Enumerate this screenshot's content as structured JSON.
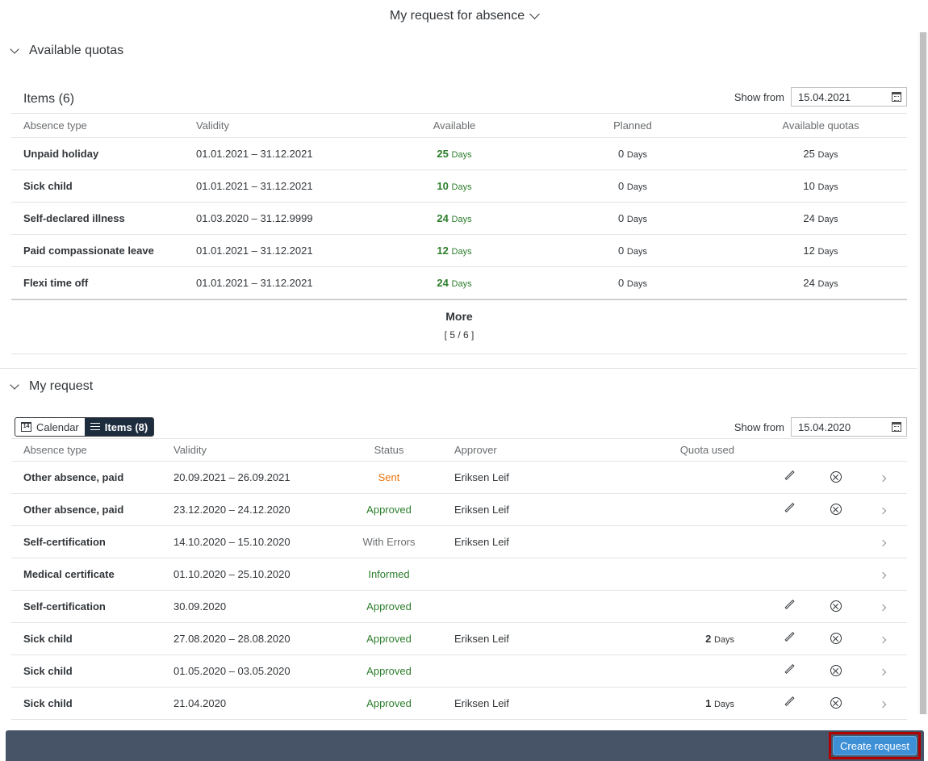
{
  "header": {
    "title": "My request for absence"
  },
  "quotas": {
    "section_title": "Available quotas",
    "items_title": "Items (6)",
    "show_from_label": "Show from",
    "show_from_value": "15.04.2021",
    "columns": [
      "Absence type",
      "Validity",
      "Available",
      "Planned",
      "Available quotas"
    ],
    "rows": [
      {
        "type": "Unpaid holiday",
        "validity": "01.01.2021 – 31.12.2021",
        "available": "25",
        "planned": "0",
        "quotas": "25",
        "unit": "Days"
      },
      {
        "type": "Sick child",
        "validity": "01.01.2021 – 31.12.2021",
        "available": "10",
        "planned": "0",
        "quotas": "10",
        "unit": "Days"
      },
      {
        "type": "Self-declared illness",
        "validity": "01.03.2020 – 31.12.9999",
        "available": "24",
        "planned": "0",
        "quotas": "24",
        "unit": "Days"
      },
      {
        "type": "Paid compassionate leave",
        "validity": "01.01.2021 – 31.12.2021",
        "available": "12",
        "planned": "0",
        "quotas": "12",
        "unit": "Days"
      },
      {
        "type": "Flexi time off",
        "validity": "01.01.2021 – 31.12.2021",
        "available": "24",
        "planned": "0",
        "quotas": "24",
        "unit": "Days"
      }
    ],
    "more_label": "More",
    "more_count": "[ 5 / 6 ]"
  },
  "requests": {
    "section_title": "My request",
    "calendar_label": "Calendar",
    "calendar_icon_text": "14",
    "items_label": "Items (8)",
    "show_from_label": "Show from",
    "show_from_value": "15.04.2020",
    "columns": [
      "Absence type",
      "Validity",
      "Status",
      "Approver",
      "Quota used"
    ],
    "rows": [
      {
        "type": "Other absence, paid",
        "validity": "20.09.2021 – 26.09.2021",
        "status": "Sent",
        "status_color": "#e9730c",
        "approver": "Eriksen Leif",
        "quota": "",
        "unit": "",
        "edit": true,
        "cancel": true
      },
      {
        "type": "Other absence, paid",
        "validity": "23.12.2020 – 24.12.2020",
        "status": "Approved",
        "status_color": "#2b7d2b",
        "approver": "Eriksen Leif",
        "quota": "",
        "unit": "",
        "edit": true,
        "cancel": true
      },
      {
        "type": "Self-certification",
        "validity": "14.10.2020 – 15.10.2020",
        "status": "With Errors",
        "status_color": "#6a6d70",
        "approver": "Eriksen Leif",
        "quota": "",
        "unit": "",
        "edit": false,
        "cancel": false
      },
      {
        "type": "Medical certificate",
        "validity": "01.10.2020 – 25.10.2020",
        "status": "Informed",
        "status_color": "#2b7d2b",
        "approver": "",
        "quota": "",
        "unit": "",
        "edit": false,
        "cancel": false
      },
      {
        "type": "Self-certification",
        "validity": "30.09.2020",
        "status": "Approved",
        "status_color": "#2b7d2b",
        "approver": "",
        "quota": "",
        "unit": "",
        "edit": true,
        "cancel": true
      },
      {
        "type": "Sick child",
        "validity": "27.08.2020 – 28.08.2020",
        "status": "Approved",
        "status_color": "#2b7d2b",
        "approver": "Eriksen Leif",
        "quota": "2",
        "unit": "Days",
        "edit": true,
        "cancel": true
      },
      {
        "type": "Sick child",
        "validity": "01.05.2020 – 03.05.2020",
        "status": "Approved",
        "status_color": "#2b7d2b",
        "approver": "",
        "quota": "",
        "unit": "",
        "edit": true,
        "cancel": true
      },
      {
        "type": "Sick child",
        "validity": "21.04.2020",
        "status": "Approved",
        "status_color": "#2b7d2b",
        "approver": "Eriksen Leif",
        "quota": "1",
        "unit": "Days",
        "edit": true,
        "cancel": true
      }
    ]
  },
  "footer": {
    "create_label": "Create request"
  }
}
